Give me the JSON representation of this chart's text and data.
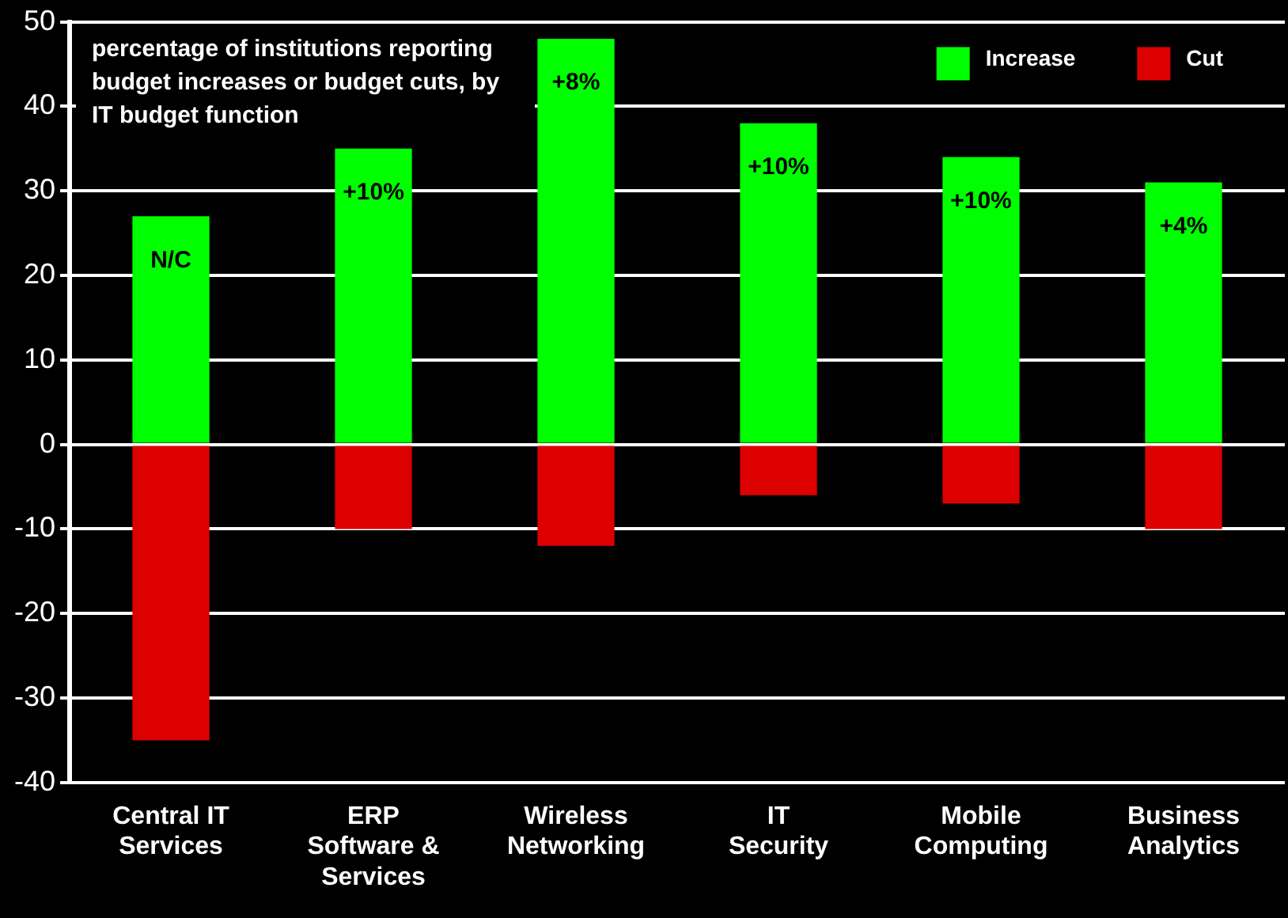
{
  "chart_data": {
    "type": "bar",
    "title": "percentage of institutions reporting budget increases or budget cuts, by IT budget function",
    "categories": [
      "Central IT Services",
      "ERP Software & Services",
      "Wireless Networking",
      "IT Security",
      "Mobile Computing",
      "Business Analytics"
    ],
    "series": [
      {
        "name": "Increase",
        "color": "#00ff00",
        "values": [
          27,
          35,
          48,
          38,
          34,
          31
        ]
      },
      {
        "name": "Cut",
        "color": "#dd0000",
        "values": [
          -35,
          -10,
          -12,
          -6,
          -7,
          -10
        ]
      }
    ],
    "annotations": [
      "N/C",
      "+10%",
      "+8%",
      "+10%",
      "+10%",
      "+4%"
    ],
    "stacked": true,
    "ylim": [
      -40,
      50
    ],
    "yticks": [
      -40,
      -30,
      -20,
      -10,
      0,
      10,
      20,
      30,
      40,
      50
    ],
    "grid": "y",
    "legend": "top right"
  }
}
